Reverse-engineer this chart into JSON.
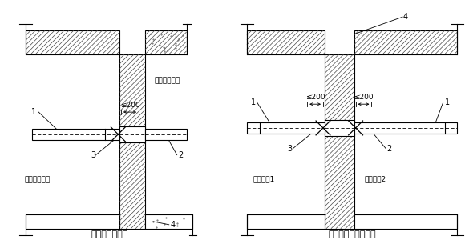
{
  "bg_color": "#ffffff",
  "line_color": "#000000",
  "title1": "管道从侧墙出入",
  "title2": "管道从相邻单元引入",
  "label_outside": "防空地下室外",
  "label_inside": "防空地下室内",
  "label_unit1": "防护单元1",
  "label_unit2": "防护单元2",
  "dim_text": "≤200",
  "n1": "1",
  "n2": "2",
  "n3": "3",
  "n4": "4"
}
